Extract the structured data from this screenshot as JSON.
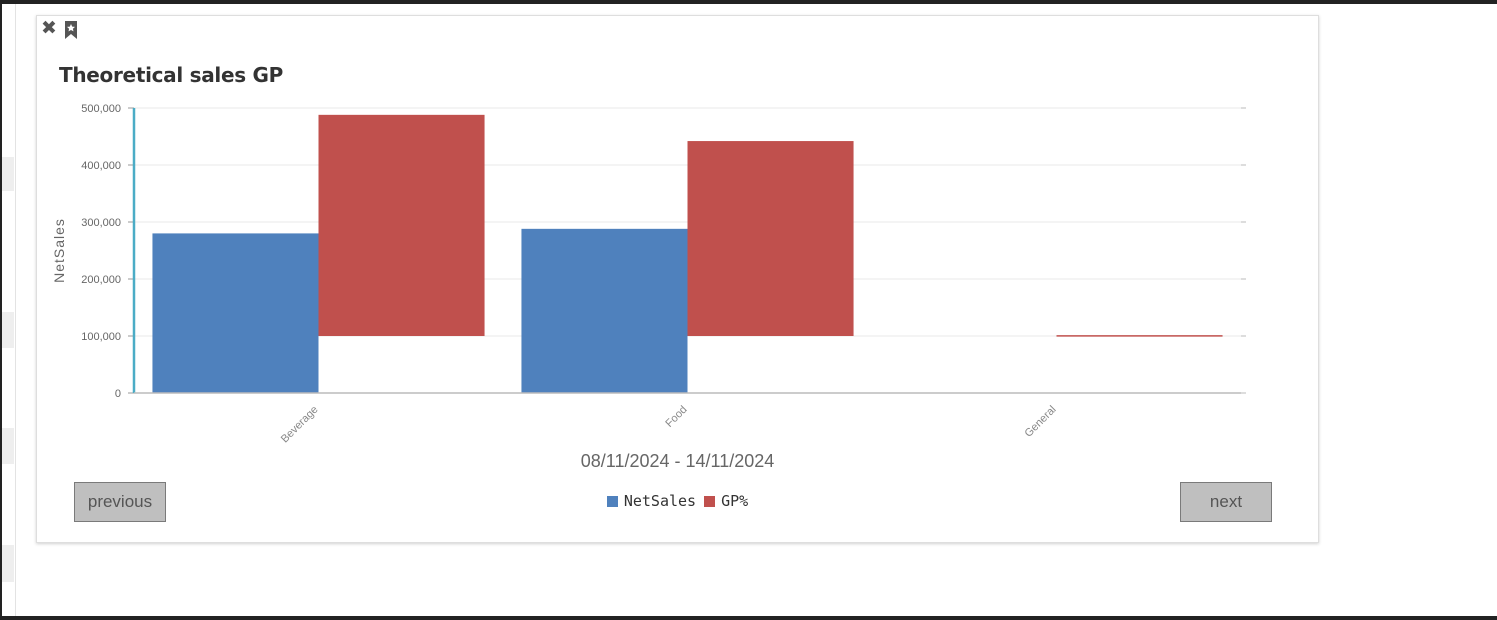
{
  "widget": {
    "title": "Theoretical sales GP",
    "date_range": "08/11/2024 - 14/11/2024",
    "close_icon": "close-icon",
    "bookmark_icon": "bookmark-icon",
    "previous_label": "previous",
    "next_label": "next"
  },
  "legend": [
    {
      "label": "NetSales",
      "color": "#4f81bd"
    },
    {
      "label": "GP%",
      "color": "#c0504d"
    }
  ],
  "chart_data": {
    "type": "bar",
    "categories": [
      "Beverage",
      "Food",
      "General"
    ],
    "series": [
      {
        "name": "NetSales",
        "color": "#4f81bd",
        "values": [
          280000,
          288000,
          0
        ]
      },
      {
        "name": "GP%",
        "color": "#c0504d",
        "ranges": [
          [
            100000,
            488000
          ],
          [
            100000,
            442000
          ],
          [
            100000,
            101500
          ]
        ]
      }
    ],
    "ylabel": "NetSales",
    "ylim": [
      0,
      500000
    ],
    "y_ticks": [
      "0",
      "100,000",
      "200,000",
      "300,000",
      "400,000",
      "500,000"
    ],
    "y_tick_values": [
      0,
      100000,
      200000,
      300000,
      400000,
      500000
    ],
    "grid": true,
    "legend_position": "bottom-center",
    "axis_color": "#4bacc6"
  }
}
